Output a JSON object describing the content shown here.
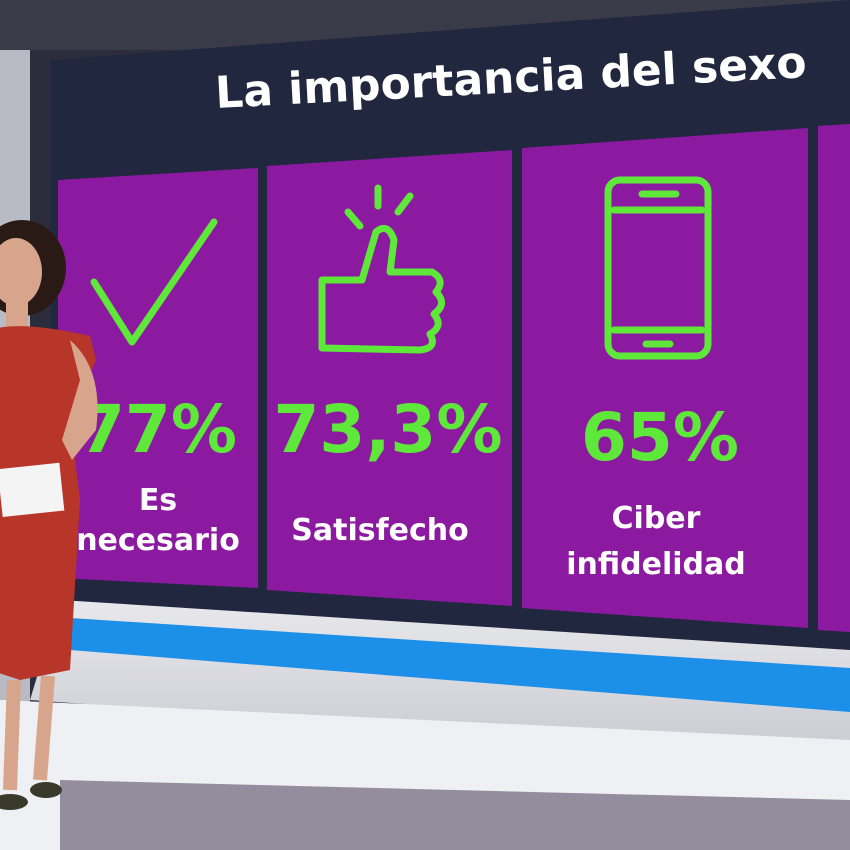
{
  "title": "La importancia del sexo",
  "cards": [
    {
      "value": "77%",
      "label": [
        "Es",
        "necesario"
      ]
    },
    {
      "value": "73,3%",
      "label": [
        "Satisfecho"
      ]
    },
    {
      "value": "65%",
      "label": [
        "Ciber",
        "infidelidad"
      ]
    }
  ]
}
